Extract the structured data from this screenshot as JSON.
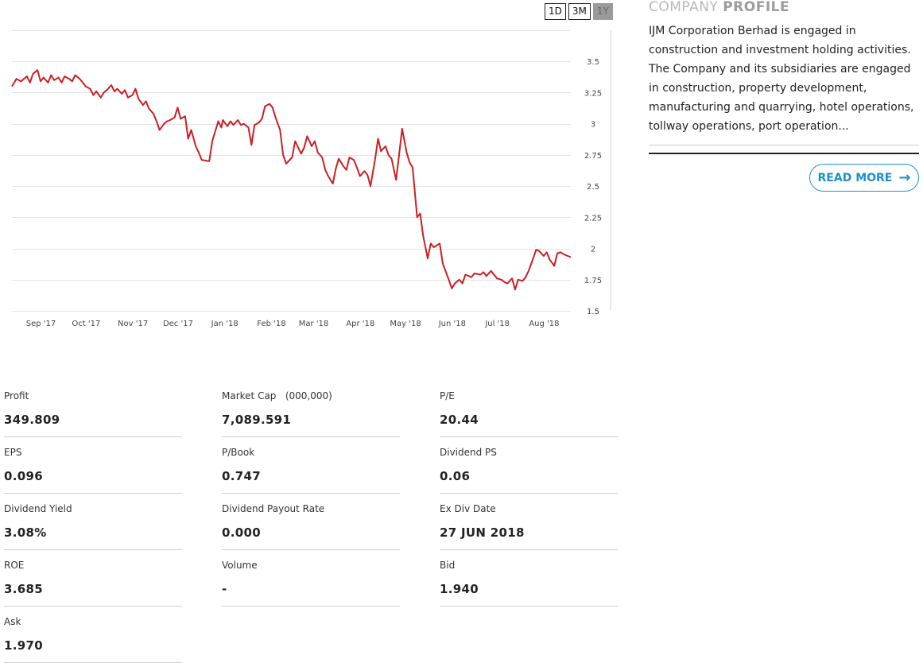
{
  "range_buttons": [
    {
      "label": "1D",
      "active": false
    },
    {
      "label": "3M",
      "active": false
    },
    {
      "label": "1Y",
      "active": true
    }
  ],
  "colors": {
    "line": "#cc1f24",
    "accent": "#1d8fd0",
    "grid": "#e3e3e3"
  },
  "chart_data": {
    "type": "line",
    "title": "",
    "xlabel": "",
    "ylabel": "",
    "y_ticks": [
      "3.5",
      "3.25",
      "3",
      "2.75",
      "2.5",
      "2.25",
      "2",
      "1.75",
      "1.5"
    ],
    "ylim": [
      1.5,
      3.75
    ],
    "y_axis_position": "right",
    "grid": true,
    "x_ticks": [
      "Sep '17",
      "Oct '17",
      "Nov '17",
      "Dec '17",
      "Jan '18",
      "Feb '18",
      "Mar '18",
      "Apr '18",
      "May '18",
      "Jun '18",
      "Jul '18",
      "Aug '18"
    ],
    "x_tick_dates": [
      "2017-09-01",
      "2017-10-01",
      "2017-11-01",
      "2017-12-01",
      "2018-01-01",
      "2018-02-01",
      "2018-03-01",
      "2018-04-01",
      "2018-05-01",
      "2018-06-01",
      "2018-07-01",
      "2018-08-01"
    ],
    "series": [
      {
        "values": [
          [
            "2017-08-18",
            3.3
          ],
          [
            "2017-08-21",
            3.36
          ],
          [
            "2017-08-24",
            3.34
          ],
          [
            "2017-08-28",
            3.38
          ],
          [
            "2017-08-30",
            3.33
          ],
          [
            "2017-09-01",
            3.4
          ],
          [
            "2017-09-04",
            3.43
          ],
          [
            "2017-09-06",
            3.34
          ],
          [
            "2017-09-08",
            3.37
          ],
          [
            "2017-09-11",
            3.33
          ],
          [
            "2017-09-13",
            3.39
          ],
          [
            "2017-09-15",
            3.35
          ],
          [
            "2017-09-18",
            3.37
          ],
          [
            "2017-09-20",
            3.33
          ],
          [
            "2017-09-22",
            3.38
          ],
          [
            "2017-09-25",
            3.36
          ],
          [
            "2017-09-27",
            3.34
          ],
          [
            "2017-09-29",
            3.39
          ],
          [
            "2017-10-02",
            3.36
          ],
          [
            "2017-10-04",
            3.33
          ],
          [
            "2017-10-06",
            3.3
          ],
          [
            "2017-10-09",
            3.28
          ],
          [
            "2017-10-11",
            3.23
          ],
          [
            "2017-10-13",
            3.26
          ],
          [
            "2017-10-16",
            3.21
          ],
          [
            "2017-10-18",
            3.25
          ],
          [
            "2017-10-20",
            3.27
          ],
          [
            "2017-10-23",
            3.31
          ],
          [
            "2017-10-25",
            3.26
          ],
          [
            "2017-10-27",
            3.28
          ],
          [
            "2017-10-30",
            3.24
          ],
          [
            "2017-11-01",
            3.27
          ],
          [
            "2017-11-03",
            3.21
          ],
          [
            "2017-11-06",
            3.23
          ],
          [
            "2017-11-08",
            3.28
          ],
          [
            "2017-11-10",
            3.2
          ],
          [
            "2017-11-13",
            3.15
          ],
          [
            "2017-11-15",
            3.18
          ],
          [
            "2017-11-17",
            3.12
          ],
          [
            "2017-11-20",
            3.08
          ],
          [
            "2017-11-22",
            3.02
          ],
          [
            "2017-11-24",
            2.95
          ],
          [
            "2017-11-27",
            3.0
          ],
          [
            "2017-11-29",
            3.02
          ],
          [
            "2017-12-01",
            3.03
          ],
          [
            "2017-12-04",
            3.05
          ],
          [
            "2017-12-06",
            3.13
          ],
          [
            "2017-12-08",
            3.04
          ],
          [
            "2017-12-11",
            3.06
          ],
          [
            "2017-12-13",
            2.88
          ],
          [
            "2017-12-15",
            2.95
          ],
          [
            "2017-12-18",
            2.82
          ],
          [
            "2017-12-20",
            2.77
          ],
          [
            "2017-12-22",
            2.71
          ],
          [
            "2017-12-27",
            2.7
          ],
          [
            "2017-12-29",
            2.86
          ],
          [
            "2018-01-02",
            3.02
          ],
          [
            "2018-01-04",
            2.97
          ],
          [
            "2018-01-05",
            3.03
          ],
          [
            "2018-01-08",
            2.98
          ],
          [
            "2018-01-10",
            3.02
          ],
          [
            "2018-01-12",
            2.99
          ],
          [
            "2018-01-15",
            3.03
          ],
          [
            "2018-01-17",
            2.99
          ],
          [
            "2018-01-19",
            3.0
          ],
          [
            "2018-01-22",
            2.97
          ],
          [
            "2018-01-24",
            2.83
          ],
          [
            "2018-01-26",
            2.99
          ],
          [
            "2018-01-29",
            3.01
          ],
          [
            "2018-01-31",
            3.04
          ],
          [
            "2018-02-02",
            3.14
          ],
          [
            "2018-02-05",
            3.16
          ],
          [
            "2018-02-07",
            3.13
          ],
          [
            "2018-02-09",
            3.05
          ],
          [
            "2018-02-12",
            2.95
          ],
          [
            "2018-02-14",
            2.75
          ],
          [
            "2018-02-16",
            2.68
          ],
          [
            "2018-02-20",
            2.73
          ],
          [
            "2018-02-22",
            2.86
          ],
          [
            "2018-02-26",
            2.76
          ],
          [
            "2018-02-28",
            2.81
          ],
          [
            "2018-03-02",
            2.9
          ],
          [
            "2018-03-05",
            2.82
          ],
          [
            "2018-03-07",
            2.86
          ],
          [
            "2018-03-09",
            2.77
          ],
          [
            "2018-03-12",
            2.73
          ],
          [
            "2018-03-14",
            2.63
          ],
          [
            "2018-03-16",
            2.58
          ],
          [
            "2018-03-19",
            2.52
          ],
          [
            "2018-03-21",
            2.64
          ],
          [
            "2018-03-23",
            2.72
          ],
          [
            "2018-03-26",
            2.66
          ],
          [
            "2018-03-28",
            2.63
          ],
          [
            "2018-03-30",
            2.73
          ],
          [
            "2018-04-02",
            2.71
          ],
          [
            "2018-04-04",
            2.65
          ],
          [
            "2018-04-06",
            2.58
          ],
          [
            "2018-04-09",
            2.62
          ],
          [
            "2018-04-11",
            2.59
          ],
          [
            "2018-04-13",
            2.5
          ],
          [
            "2018-04-16",
            2.71
          ],
          [
            "2018-04-18",
            2.88
          ],
          [
            "2018-04-20",
            2.78
          ],
          [
            "2018-04-23",
            2.82
          ],
          [
            "2018-04-25",
            2.75
          ],
          [
            "2018-04-27",
            2.72
          ],
          [
            "2018-04-30",
            2.55
          ],
          [
            "2018-05-02",
            2.75
          ],
          [
            "2018-05-04",
            2.96
          ],
          [
            "2018-05-07",
            2.77
          ],
          [
            "2018-05-09",
            2.69
          ],
          [
            "2018-05-11",
            2.65
          ],
          [
            "2018-05-14",
            2.25
          ],
          [
            "2018-05-16",
            2.28
          ],
          [
            "2018-05-18",
            2.1
          ],
          [
            "2018-05-21",
            1.92
          ],
          [
            "2018-05-23",
            2.04
          ],
          [
            "2018-05-25",
            2.01
          ],
          [
            "2018-05-29",
            2.04
          ],
          [
            "2018-05-31",
            1.88
          ],
          [
            "2018-06-04",
            1.75
          ],
          [
            "2018-06-06",
            1.68
          ],
          [
            "2018-06-08",
            1.72
          ],
          [
            "2018-06-11",
            1.75
          ],
          [
            "2018-06-13",
            1.72
          ],
          [
            "2018-06-15",
            1.79
          ],
          [
            "2018-06-19",
            1.77
          ],
          [
            "2018-06-21",
            1.8
          ],
          [
            "2018-06-25",
            1.79
          ],
          [
            "2018-06-27",
            1.81
          ],
          [
            "2018-06-29",
            1.78
          ],
          [
            "2018-07-02",
            1.82
          ],
          [
            "2018-07-04",
            1.79
          ],
          [
            "2018-07-06",
            1.76
          ],
          [
            "2018-07-09",
            1.75
          ],
          [
            "2018-07-11",
            1.73
          ],
          [
            "2018-07-13",
            1.72
          ],
          [
            "2018-07-16",
            1.76
          ],
          [
            "2018-07-18",
            1.67
          ],
          [
            "2018-07-20",
            1.75
          ],
          [
            "2018-07-23",
            1.74
          ],
          [
            "2018-07-25",
            1.77
          ],
          [
            "2018-07-27",
            1.82
          ],
          [
            "2018-07-30",
            1.92
          ],
          [
            "2018-08-01",
            1.99
          ],
          [
            "2018-08-03",
            1.98
          ],
          [
            "2018-08-06",
            1.94
          ],
          [
            "2018-08-08",
            1.97
          ],
          [
            "2018-08-10",
            1.91
          ],
          [
            "2018-08-13",
            1.86
          ],
          [
            "2018-08-15",
            1.96
          ],
          [
            "2018-08-17",
            1.97
          ],
          [
            "2018-08-20",
            1.95
          ],
          [
            "2018-08-22",
            1.94
          ],
          [
            "2018-08-24",
            1.93
          ]
        ]
      }
    ]
  },
  "profile": {
    "title_light": "COMPANY ",
    "title_bold": "PROFILE",
    "description": "IJM Corporation Berhad is engaged in construction and investment holding activities. The Company and its subsidiaries are engaged in construction, property development, manufacturing and quarrying, hotel operations, tollway operations, port operation...",
    "read_more": "READ MORE",
    "arrow_icon": "arrow-right-icon"
  },
  "stats": [
    {
      "label": "Profit",
      "value": "349.809"
    },
    {
      "label": "Market Cap   (000,000)",
      "value": "7,089.591"
    },
    {
      "label": "P/E",
      "value": "20.44"
    },
    {
      "label": "EPS",
      "value": "0.096"
    },
    {
      "label": "P/Book",
      "value": "0.747"
    },
    {
      "label": "Dividend PS",
      "value": "0.06"
    },
    {
      "label": "Dividend Yield",
      "value": "3.08%"
    },
    {
      "label": "Dividend Payout Rate",
      "value": "0.000"
    },
    {
      "label": "Ex Div Date",
      "value": "27 JUN 2018"
    },
    {
      "label": "ROE",
      "value": "3.685"
    },
    {
      "label": "Volume",
      "value": "-"
    },
    {
      "label": "Bid",
      "value": "1.940"
    },
    {
      "label": "Ask",
      "value": "1.970"
    }
  ]
}
